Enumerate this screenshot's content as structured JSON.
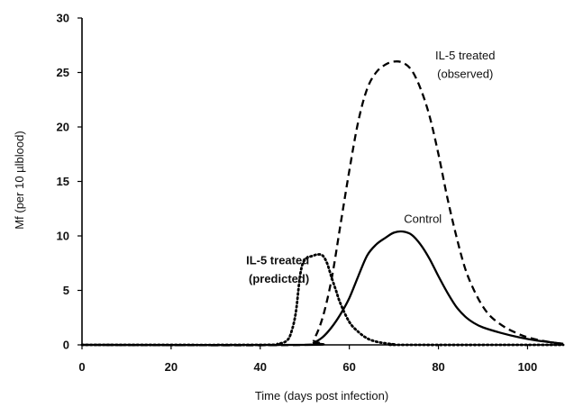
{
  "chart_data": {
    "type": "line",
    "title": "",
    "xlabel": "Time (days post infection)",
    "ylabel": "Mf (per 10 µlblood)",
    "xlim": [
      0,
      108
    ],
    "ylim": [
      0,
      30
    ],
    "xticks": [
      0,
      20,
      40,
      60,
      80,
      100
    ],
    "yticks": [
      0,
      5,
      10,
      15,
      20,
      25,
      30
    ],
    "grid": false,
    "legend": "none",
    "series": [
      {
        "name": "",
        "line_style": "dotted",
        "x": [
          0,
          40,
          44,
          46,
          47,
          48,
          49,
          50,
          52,
          53,
          54,
          55,
          56,
          57,
          58,
          60,
          62,
          64,
          66,
          68,
          70,
          72,
          108
        ],
        "y": [
          0,
          0,
          0.1,
          0.4,
          1.2,
          3,
          6.5,
          7.8,
          8.2,
          8.3,
          8.2,
          7.5,
          6.2,
          5,
          3.8,
          2.1,
          1.2,
          0.6,
          0.3,
          0.15,
          0.05,
          0,
          0
        ]
      },
      {
        "name": "",
        "line_style": "dashed",
        "x": [
          0,
          50,
          52,
          54,
          56,
          58,
          60,
          62,
          64,
          66,
          68,
          70,
          72,
          74,
          76,
          78,
          80,
          82,
          84,
          86,
          88,
          90,
          92,
          95,
          98,
          100,
          103,
          106,
          108
        ],
        "y": [
          0,
          0,
          0.5,
          2.5,
          6,
          11,
          16,
          20.5,
          23.5,
          25,
          25.7,
          26,
          25.9,
          25.2,
          23.5,
          21,
          17.5,
          13.5,
          10,
          7,
          5,
          3.5,
          2.5,
          1.6,
          1,
          0.7,
          0.4,
          0.2,
          0.1
        ]
      },
      {
        "name": "",
        "line_style": "solid",
        "x": [
          0,
          50,
          52,
          54,
          56,
          58,
          60,
          62,
          64,
          66,
          68,
          70,
          72,
          74,
          76,
          78,
          80,
          82,
          84,
          86,
          88,
          90,
          94,
          98,
          102,
          106,
          108
        ],
        "y": [
          0,
          0,
          0.2,
          0.7,
          1.6,
          2.8,
          4.3,
          6.3,
          8.2,
          9.2,
          9.8,
          10.3,
          10.4,
          10.1,
          9.2,
          7.9,
          6.3,
          4.8,
          3.5,
          2.6,
          2,
          1.6,
          1.1,
          0.7,
          0.4,
          0.2,
          0.1
        ]
      }
    ],
    "annotations": [
      {
        "text": "IL-5 treated",
        "x": 51,
        "y": 7.4,
        "anchor": "end",
        "bold": true
      },
      {
        "text": "(predicted)",
        "x": 51,
        "y": 5.7,
        "anchor": "end",
        "bold": true
      },
      {
        "text": "IL-5 treated",
        "x": 86,
        "y": 26.2,
        "anchor": "middle",
        "bold": false
      },
      {
        "text": "(observed)",
        "x": 86,
        "y": 24.5,
        "anchor": "middle",
        "bold": false
      },
      {
        "text": "Control",
        "x": 76.5,
        "y": 11.2,
        "anchor": "middle",
        "bold": false
      }
    ]
  }
}
